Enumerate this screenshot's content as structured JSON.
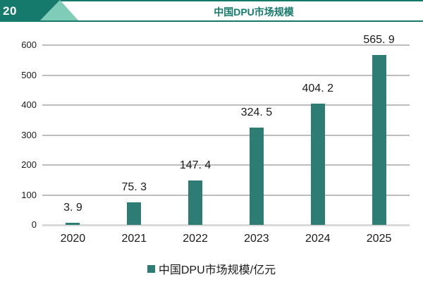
{
  "page": {
    "number": "20",
    "header_title": "中国DPU市场规模"
  },
  "colors": {
    "teal_dark": "#15796b",
    "teal_light": "#7fccb9",
    "bar": "#2e7d74",
    "gridline": "#bdbdbd",
    "baseline": "#d9d9d9",
    "text": "#1a1a1a"
  },
  "chart_data": {
    "type": "bar",
    "title": "中国DPU市场规模",
    "categories": [
      "2020",
      "2021",
      "2022",
      "2023",
      "2024",
      "2025"
    ],
    "values": [
      3.9,
      75.3,
      147.4,
      324.5,
      404.2,
      565.9
    ],
    "value_labels": [
      "3. 9",
      "75. 3",
      "147. 4",
      "324. 5",
      "404. 2",
      "565. 9"
    ],
    "unit": "亿元",
    "xlabel": "",
    "ylabel": "",
    "ylim": [
      0,
      600
    ],
    "yticks": [
      0,
      100,
      200,
      300,
      400,
      500,
      600
    ],
    "grid": true,
    "legend_position": "bottom",
    "legend": [
      {
        "label": "中国DPU市场规模/亿元",
        "color": "#2e7d74"
      }
    ]
  }
}
